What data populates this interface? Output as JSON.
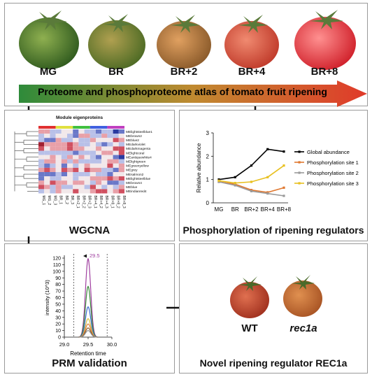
{
  "top": {
    "stages": [
      "MG",
      "BR",
      "BR+2",
      "BR+4",
      "BR+8"
    ],
    "banner": "Proteome and phosphoproteome atlas of tomato fruit ripening",
    "colors": {
      "mg": "#4a7a2c",
      "br": "#6e7a30",
      "br2": "#b0683a",
      "br4": "#d2483a",
      "br8": "#e0303a",
      "arrow_start": "#2e8b3a",
      "arrow_end": "#e03a2a"
    }
  },
  "wgcna": {
    "heading": "Module eigenproteins",
    "modules": [
      "MElightsteelblue1",
      "MEbrown2",
      "MEblue2",
      "MEdarkviolet",
      "MEdarkmagenta",
      "MElightcoral",
      "MEantiquewhite4",
      "MElightgreen",
      "MEgreenyellow",
      "MEgrey",
      "MEsalmon2",
      "MElightsteelblue",
      "MEbrown4",
      "MEblue",
      "MEindianred4"
    ],
    "samples": [
      "MG_1",
      "MG_2",
      "MG_3",
      "BR_1",
      "BR_2",
      "BR_3",
      "BR+2_1",
      "BR+2_2",
      "BR+2_3",
      "BR+4_1",
      "BR+4_2",
      "BR+4_3",
      "BR+8_1",
      "BR+8_2",
      "BR+8_3"
    ],
    "title": "WGCNA"
  },
  "phospho": {
    "title": "Phosphorylation of ripening regulators",
    "chart_data": {
      "type": "line",
      "categories": [
        "MG",
        "BR",
        "BR+2",
        "BR+4",
        "BR+8"
      ],
      "ylabel": "Relative abundance",
      "ylim": [
        0,
        3
      ],
      "yticks": [
        "0",
        "1",
        "2",
        "3"
      ],
      "series": [
        {
          "name": "Global abundance",
          "color": "#000000",
          "values": [
            1.0,
            1.1,
            1.6,
            2.3,
            2.2
          ]
        },
        {
          "name": "Phosphorylation site 1",
          "color": "#e07830",
          "values": [
            0.9,
            0.8,
            0.55,
            0.45,
            0.65
          ]
        },
        {
          "name": "Phosphorylation site 2",
          "color": "#9a9a9a",
          "values": [
            0.9,
            0.75,
            0.5,
            0.4,
            0.3
          ]
        },
        {
          "name": "Phosphorylation site 3",
          "color": "#e8c020",
          "values": [
            0.95,
            0.85,
            0.9,
            1.1,
            1.6
          ]
        }
      ]
    }
  },
  "prm": {
    "title": "PRM validation",
    "chart_data": {
      "type": "line",
      "xlabel": "Retention time",
      "ylabel": "intensity (10^3)",
      "xlim": [
        29.0,
        30.0
      ],
      "ylim": [
        0,
        120
      ],
      "xticks": [
        "29.0",
        "29.5",
        "30.0"
      ],
      "yticks": [
        "0",
        "10",
        "20",
        "30",
        "40",
        "50",
        "60",
        "70",
        "80",
        "90",
        "100",
        "110",
        "120"
      ],
      "peak_label": "29.5",
      "series": [
        {
          "color": "#a040a0",
          "peak": 119
        },
        {
          "color": "#3a8a3a",
          "peak": 77
        },
        {
          "color": "#3a6ad0",
          "peak": 46
        },
        {
          "color": "#d8c040",
          "peak": 28
        },
        {
          "color": "#e08040",
          "peak": 20
        },
        {
          "color": "#8a5a2a",
          "peak": 14
        },
        {
          "color": "#909090",
          "peak": 10
        }
      ]
    }
  },
  "rec1a": {
    "title": "Novel ripening regulator REC1a",
    "wt": "WT",
    "mutant": "rec1a"
  }
}
